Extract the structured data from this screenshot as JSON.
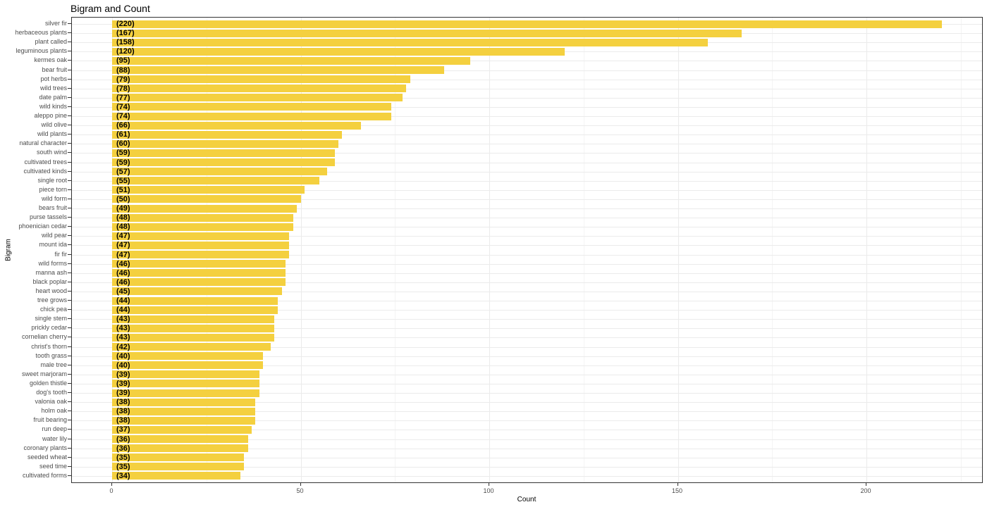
{
  "chart_data": {
    "type": "bar",
    "orientation": "horizontal",
    "title": "Bigram and Count",
    "xlabel": "Count",
    "ylabel": "Bigram",
    "xlim": [
      -10.5,
      231
    ],
    "xticks": [
      0,
      50,
      100,
      150,
      200
    ],
    "grid": true,
    "bar_color": "#f4d03f",
    "categories": [
      "silver fir",
      "herbaceous plants",
      "plant called",
      "leguminous plants",
      "kermes oak",
      "bear fruit",
      "pot herbs",
      "wild trees",
      "date palm",
      "wild kinds",
      "aleppo pine",
      "wild olive",
      "wild plants",
      "natural character",
      "south wind",
      "cultivated trees",
      "cultivated kinds",
      "single root",
      "piece torn",
      "wild form",
      "bears fruit",
      "purse tassels",
      "phoenician cedar",
      "wild pear",
      "mount ida",
      "fir fir",
      "wild forms",
      "manna ash",
      "black poplar",
      "heart wood",
      "tree grows",
      "chick pea",
      "single stem",
      "prickly cedar",
      "cornelian cherry",
      "christ's thorn",
      "tooth grass",
      "male tree",
      "sweet marjoram",
      "golden thistle",
      "dog's tooth",
      "valonia oak",
      "holm oak",
      "fruit bearing",
      "run deep",
      "water lily",
      "coronary plants",
      "seeded wheat",
      "seed time",
      "cultivated forms"
    ],
    "values": [
      220,
      167,
      158,
      120,
      95,
      88,
      79,
      78,
      77,
      74,
      74,
      66,
      61,
      60,
      59,
      59,
      57,
      55,
      51,
      50,
      49,
      48,
      48,
      47,
      47,
      47,
      46,
      46,
      46,
      45,
      44,
      44,
      43,
      43,
      43,
      42,
      40,
      40,
      39,
      39,
      39,
      38,
      38,
      38,
      37,
      36,
      36,
      35,
      35,
      34
    ],
    "bar_labels": [
      "(220)",
      "(167)",
      "(158)",
      "(120)",
      "(95)",
      "(88)",
      "(79)",
      "(78)",
      "(77)",
      "(74)",
      "(74)",
      "(66)",
      "(61)",
      "(60)",
      "(59)",
      "(59)",
      "(57)",
      "(55)",
      "(51)",
      "(50)",
      "(49)",
      "(48)",
      "(48)",
      "(47)",
      "(47)",
      "(47)",
      "(46)",
      "(46)",
      "(46)",
      "(45)",
      "(44)",
      "(44)",
      "(43)",
      "(43)",
      "(43)",
      "(42)",
      "(40)",
      "(40)",
      "(39)",
      "(39)",
      "(39)",
      "(38)",
      "(38)",
      "(38)",
      "(37)",
      "(36)",
      "(36)",
      "(35)",
      "(35)",
      "(34)"
    ]
  }
}
